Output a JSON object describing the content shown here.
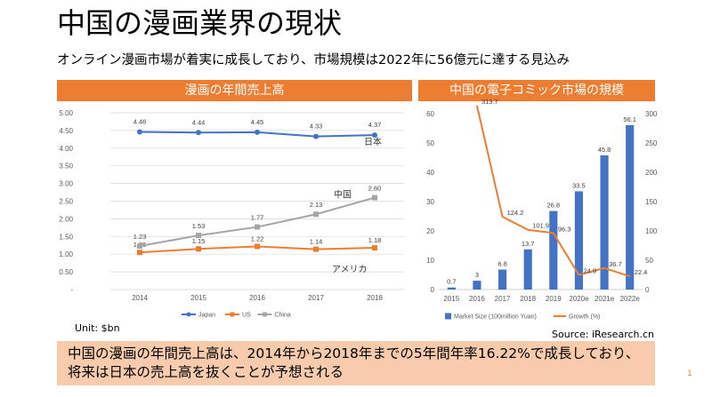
{
  "title": "中国の漫画業界の現状",
  "subtitle": "オンライン漫画市場が着実に成長しており、市場規模は2022年に56億元に達する見込み",
  "left_panel_title": "漫画の年間売上高",
  "right_panel_title": "中国の電子コミック市場の規模",
  "unit_note": "Unit: $bn",
  "source": "Source: iResearch.cn",
  "note": "中国の漫画の年間売上高は、2014年から2018年までの5年間年率16.22%で成長しており、将来は日本の売上高を抜くことが予想される",
  "page_number": "1",
  "colors": {
    "accent": "#ed7d31",
    "japan": "#4472c4",
    "us": "#ed7d31",
    "china": "#a5a5a5",
    "bar": "#4472c4",
    "growth": "#ed7d31",
    "note_bg": "#f8cbad"
  },
  "chart_data": [
    {
      "type": "line",
      "x": [
        "2014",
        "2015",
        "2016",
        "2017",
        "2018"
      ],
      "ylim": [
        0,
        5.0
      ],
      "yticks": [
        "-",
        "0.50",
        "1.00",
        "1.50",
        "2.00",
        "2.50",
        "3.00",
        "3.50",
        "4.00",
        "4.50",
        "5.00"
      ],
      "grid": true,
      "legend_position": "bottom",
      "series": [
        {
          "name": "Japan",
          "label": "日本",
          "values": [
            4.46,
            4.44,
            4.45,
            4.33,
            4.37
          ],
          "labels": [
            "4.46",
            "4.44",
            "4.45",
            "4.33",
            "4.37"
          ]
        },
        {
          "name": "US",
          "label": "アメリカ",
          "values": [
            1.05,
            1.15,
            1.22,
            1.14,
            1.18
          ],
          "labels": [
            "1.05",
            "1.15",
            "1.22",
            "1.14",
            "1.18"
          ]
        },
        {
          "name": "China",
          "label": "中国",
          "values": [
            1.23,
            1.53,
            1.77,
            2.13,
            2.6
          ],
          "labels": [
            "1.23",
            "1.53",
            "1.77",
            "2.13",
            "2.60"
          ]
        }
      ]
    },
    {
      "type": "bar",
      "categories": [
        "2015",
        "2016",
        "2017",
        "2018",
        "2019",
        "2020e",
        "2021e",
        "2022e"
      ],
      "ylim_left": [
        0,
        60
      ],
      "yticks_left": [
        "0",
        "10",
        "20",
        "30",
        "40",
        "50",
        "60"
      ],
      "ylim_right": [
        0,
        300
      ],
      "yticks_right": [
        "0",
        "50",
        "100",
        "150",
        "200",
        "250",
        "300"
      ],
      "legend_position": "bottom",
      "series": [
        {
          "name": "Market Size (100million Yuan)",
          "kind": "bar",
          "axis": "left",
          "values": [
            0.7,
            3,
            6.8,
            13.7,
            26.8,
            33.5,
            45.8,
            56.1
          ],
          "labels": [
            "0.7",
            "3",
            "6.8",
            "13.7",
            "26.8",
            "33.5",
            "45.8",
            "56.1"
          ]
        },
        {
          "name": "Growth (%)",
          "kind": "line",
          "axis": "right",
          "values": [
            null,
            313.7,
            124.2,
            101.9,
            96.3,
            24.9,
            36.7,
            22.4
          ],
          "labels": [
            "",
            "313.7",
            "124.2",
            "101.9",
            "96.3",
            "24.9",
            "36.7",
            "22.4"
          ]
        }
      ]
    }
  ]
}
